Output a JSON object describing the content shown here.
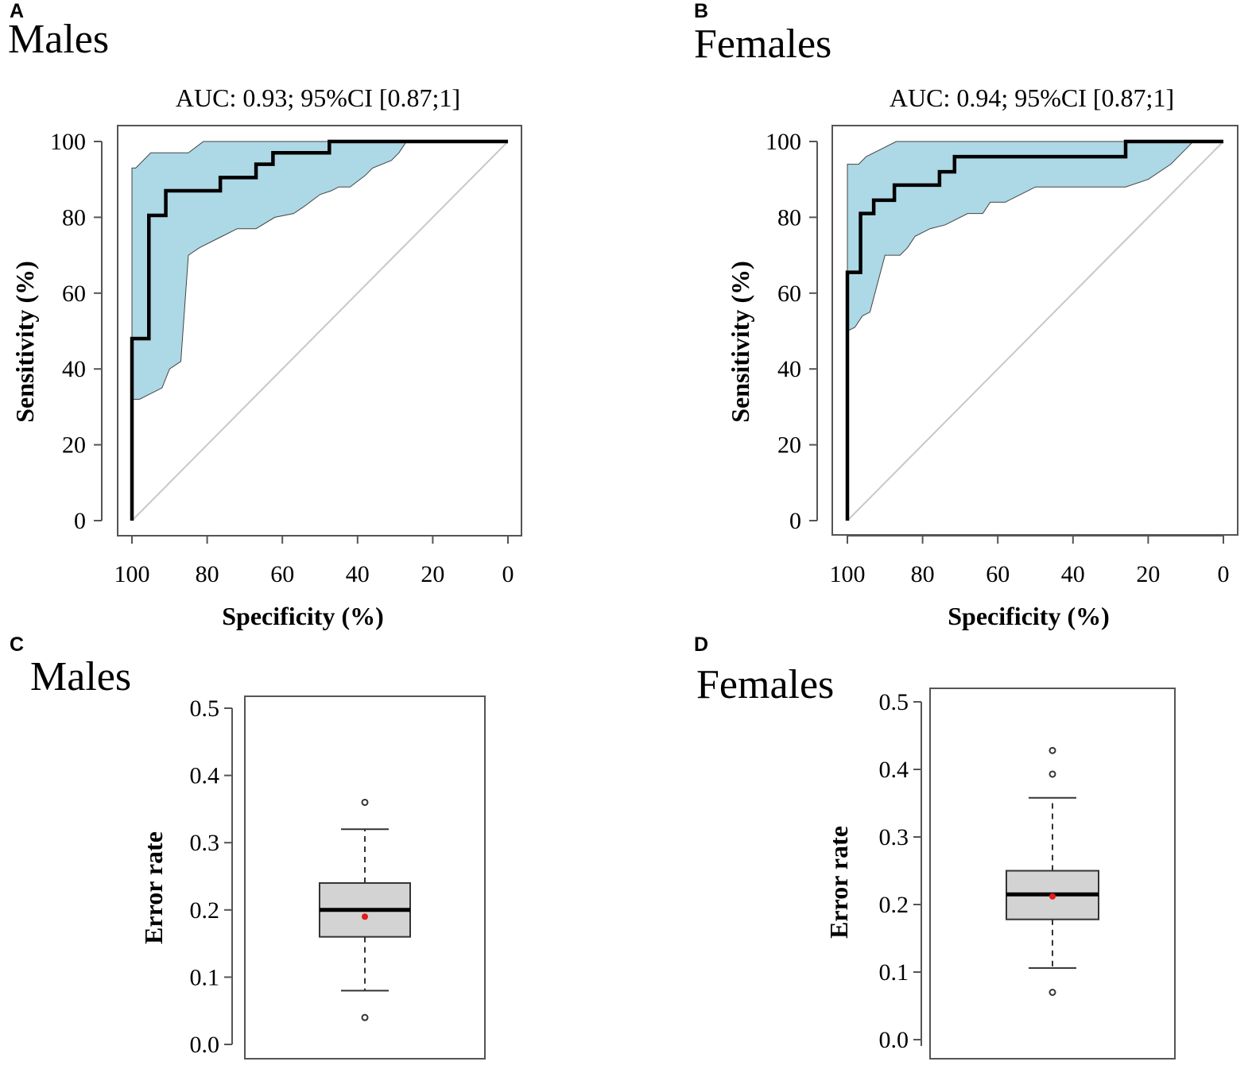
{
  "panels": [
    {
      "letter": "A",
      "group": "Males"
    },
    {
      "letter": "B",
      "group": "Females"
    },
    {
      "letter": "C",
      "group": "Males"
    },
    {
      "letter": "D",
      "group": "Females"
    }
  ],
  "colors": {
    "ci_fill": "#add8e6",
    "curve": "#000000",
    "diagonal": "#c8c8c8",
    "box_fill": "#d3d3d3",
    "mean_dot": "#e41a1c"
  },
  "chart_data": [
    {
      "type": "line",
      "panel": "A",
      "title": "AUC: 0.93; 95%CI [0.87;1]",
      "xlabel": "Specificity (%)",
      "ylabel": "Sensitivity (%)",
      "xlim": [
        100,
        0
      ],
      "ylim": [
        0,
        100
      ],
      "xticks": [
        100,
        80,
        60,
        40,
        20,
        0
      ],
      "yticks": [
        0,
        20,
        40,
        60,
        80,
        100
      ],
      "xtick_labels": [
        "100",
        "80",
        "60",
        "40",
        "20",
        "0"
      ],
      "ytick_labels": [
        "0",
        "20",
        "40",
        "60",
        "80",
        "100"
      ],
      "roc": {
        "x": [
          100,
          100,
          95.5,
          95.5,
          91,
          91,
          81,
          81,
          76.5,
          76.5,
          67,
          67,
          62.5,
          62.5,
          52,
          52,
          47.5,
          47.5,
          0
        ],
        "y": [
          0,
          48,
          48,
          80.5,
          80.5,
          87,
          87,
          87,
          87,
          90.5,
          90.5,
          94,
          94,
          97,
          97,
          97,
          97,
          100,
          100
        ]
      },
      "ci_upper": {
        "x": [
          100,
          100,
          99,
          95,
          91,
          85,
          81,
          0
        ],
        "y": [
          0,
          93,
          93,
          97,
          97,
          97,
          100,
          100
        ]
      },
      "ci_lower": {
        "x": [
          0,
          27,
          29,
          31,
          36,
          38,
          42,
          45,
          47,
          50,
          54,
          57,
          62,
          67,
          72,
          76,
          82,
          85,
          87,
          90,
          92,
          96,
          98,
          100
        ],
        "y": [
          100,
          100,
          97,
          95,
          93,
          91,
          88,
          88,
          87,
          86,
          83,
          81,
          80,
          77,
          77,
          75,
          72,
          70,
          42,
          40,
          35,
          33,
          32,
          32
        ]
      },
      "diagonal": {
        "x": [
          100,
          0
        ],
        "y": [
          0,
          100
        ]
      }
    },
    {
      "type": "line",
      "panel": "B",
      "title": "AUC: 0.94; 95%CI [0.87;1]",
      "xlabel": "Specificity (%)",
      "ylabel": "Sensitivity (%)",
      "xlim": [
        100,
        0
      ],
      "ylim": [
        0,
        100
      ],
      "xticks": [
        100,
        80,
        60,
        40,
        20,
        0
      ],
      "yticks": [
        0,
        20,
        40,
        60,
        80,
        100
      ],
      "xtick_labels": [
        "100",
        "80",
        "60",
        "40",
        "20",
        "0"
      ],
      "ytick_labels": [
        "0",
        "20",
        "40",
        "60",
        "80",
        "100"
      ],
      "roc": {
        "x": [
          100,
          100,
          96.5,
          96.5,
          93,
          93,
          87.5,
          87.5,
          75.5,
          75.5,
          71.5,
          71.5,
          26,
          26,
          0
        ],
        "y": [
          0,
          65.5,
          65.5,
          81,
          81,
          84.5,
          84.5,
          88.5,
          88.5,
          92,
          92,
          96,
          96,
          100,
          100
        ]
      },
      "ci_upper": {
        "x": [
          100,
          100,
          97,
          95,
          91,
          87,
          0
        ],
        "y": [
          0,
          94,
          94,
          96,
          98,
          100,
          100
        ]
      },
      "ci_lower": {
        "x": [
          0,
          8,
          10,
          12,
          14,
          20,
          26,
          50,
          52,
          56,
          58,
          62,
          64,
          66,
          68,
          70,
          72,
          74,
          78,
          82,
          84,
          86,
          90,
          94,
          96,
          98,
          100
        ],
        "y": [
          100,
          100,
          98,
          96,
          94,
          90,
          88,
          88,
          87,
          85,
          84,
          84,
          81,
          81,
          81,
          80,
          79,
          78,
          77,
          75,
          72,
          70,
          70,
          55,
          54,
          51,
          50
        ]
      },
      "diagonal": {
        "x": [
          100,
          0
        ],
        "y": [
          0,
          100
        ]
      }
    },
    {
      "type": "box",
      "panel": "C",
      "ylabel": "Error rate",
      "ylim": [
        0,
        0.5
      ],
      "yticks": [
        0,
        0.1,
        0.2,
        0.3,
        0.4,
        0.5
      ],
      "ytick_labels": [
        "0.0",
        "0.1",
        "0.2",
        "0.3",
        "0.4",
        "0.5"
      ],
      "box": {
        "q1": 0.16,
        "median": 0.2,
        "q3": 0.24,
        "whisker_low": 0.08,
        "whisker_high": 0.32,
        "mean": 0.19
      },
      "outliers": [
        0.04,
        0.36
      ]
    },
    {
      "type": "box",
      "panel": "D",
      "ylabel": "Error rate",
      "ylim": [
        0,
        0.5
      ],
      "yticks": [
        0,
        0.1,
        0.2,
        0.3,
        0.4,
        0.5
      ],
      "ytick_labels": [
        "0.0",
        "0.1",
        "0.2",
        "0.3",
        "0.4",
        "0.5"
      ],
      "box": {
        "q1": 0.178,
        "median": 0.215,
        "q3": 0.25,
        "whisker_low": 0.106,
        "whisker_high": 0.358,
        "mean": 0.212
      },
      "outliers": [
        0.07,
        0.393,
        0.428
      ]
    }
  ]
}
